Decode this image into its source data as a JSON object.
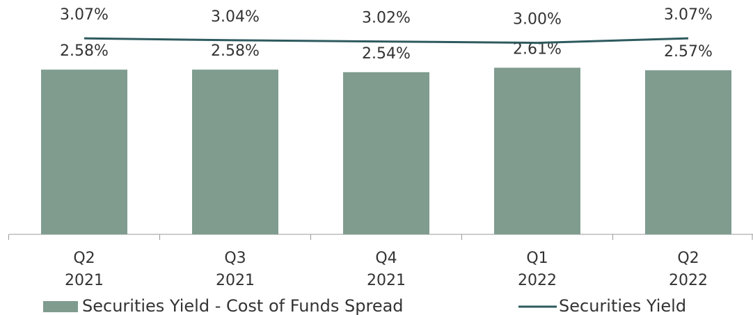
{
  "chart_data": {
    "type": "bar-line",
    "categories": [
      "Q2\n2021",
      "Q3\n2021",
      "Q4\n2021",
      "Q1\n2022",
      "Q2\n2022"
    ],
    "series": [
      {
        "name": "Securities Yield - Cost of Funds Spread",
        "type": "bar",
        "color": "#7f9c8f",
        "values": [
          2.58,
          2.58,
          2.54,
          2.61,
          2.57
        ],
        "value_labels": [
          "2.58%",
          "2.58%",
          "2.54%",
          "2.61%",
          "2.57%"
        ]
      },
      {
        "name": "Securities Yield",
        "type": "line",
        "color": "#2e5a5e",
        "values": [
          3.07,
          3.04,
          3.02,
          3.0,
          3.07
        ],
        "value_labels": [
          "3.07%",
          "3.04%",
          "3.02%",
          "3.00%",
          "3.07%"
        ]
      }
    ],
    "ylim": [
      0,
      3.6
    ],
    "legend": "bottom"
  }
}
